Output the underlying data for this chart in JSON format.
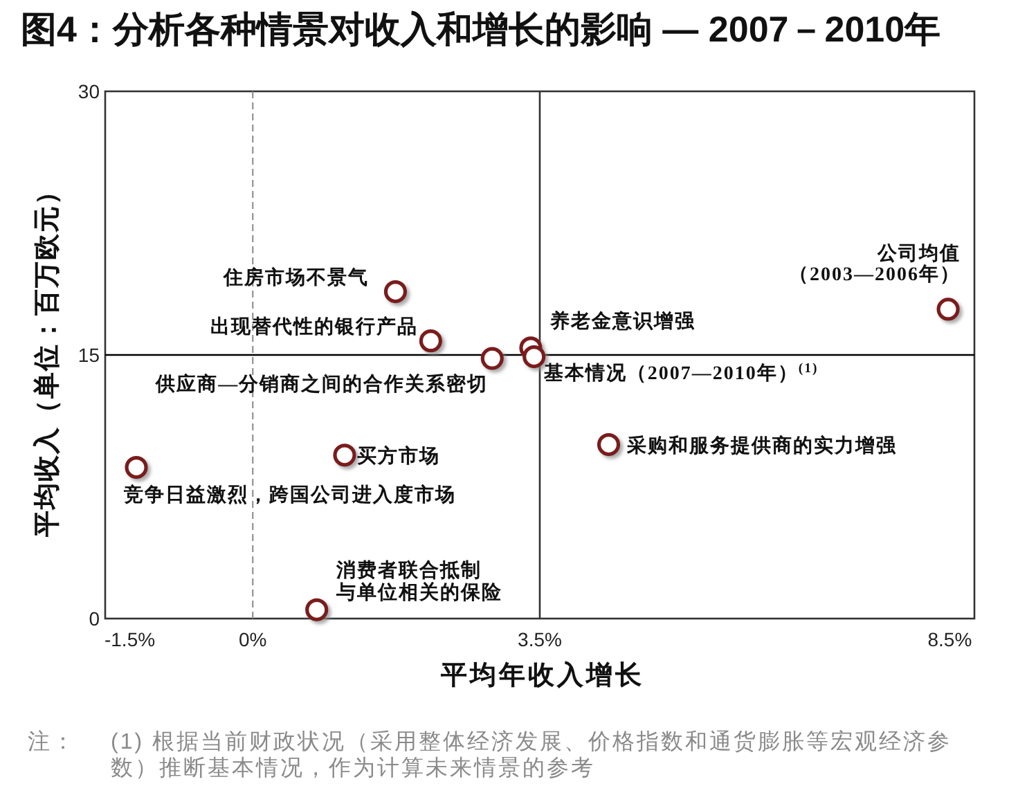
{
  "chart_data": {
    "type": "scatter",
    "title": "图4：分析各种情景对收入和增长的影响 — 2007－2010年",
    "xlabel": "平均年收入增长",
    "ylabel": "平均收入（单位：百万欧元）",
    "x": [
      1.74,
      2.17,
      2.92,
      3.39,
      3.43,
      8.48,
      4.34,
      1.12,
      -1.42,
      0.78
    ],
    "series": [
      {
        "color": "#7a1a1a",
        "values": [
          18.6,
          15.8,
          14.8,
          15.4,
          14.9,
          17.6,
          9.9,
          9.3,
          8.6,
          0.5
        ]
      }
    ],
    "marker": "circle",
    "xlim": [
      -1.8,
      8.8
    ],
    "xticks": [
      {
        "value": -1.5,
        "label": "-1.5%"
      },
      {
        "value": 0,
        "label": "0%"
      },
      {
        "value": 3.5,
        "label": "3.5%"
      },
      {
        "value": 8.5,
        "label": "8.5%"
      }
    ],
    "ylim": [
      0,
      30
    ],
    "yticks": [
      0,
      15,
      30
    ],
    "ref_lines": [
      {
        "axis": "y",
        "value": 15,
        "color": "#000000"
      },
      {
        "axis": "x",
        "value": 3.5,
        "color": "#333333"
      },
      {
        "axis": "x",
        "value": 0,
        "color": "#888888",
        "line_style": "dashed"
      }
    ],
    "annotations": [
      {
        "text": "住房市场不景气",
        "x": 1.74,
        "y": 18.6
      },
      {
        "text": "出现替代性的银行产品",
        "x": 2.17,
        "y": 15.8
      },
      {
        "text": "供应商—分销商之间的合作关系密切",
        "x": 2.92,
        "y": 14.8
      },
      {
        "text": "养老金意识增强",
        "x": 3.39,
        "y": 15.4
      },
      {
        "text": "基本情况（2007—2010年）$^{(1)}$",
        "x": 3.43,
        "y": 14.9
      },
      {
        "text": "公司均值",
        "x": 8.48,
        "y": 17.6
      },
      {
        "text": "（2003—2006年）",
        "x": 8.48,
        "y": 17.6
      },
      {
        "text": "采购和服务提供商的实力增强",
        "x": 4.34,
        "y": 9.9
      },
      {
        "text": "买方市场",
        "x": 1.12,
        "y": 9.3
      },
      {
        "text": "竞争日益激烈，跨国公司进入度市场",
        "x": -1.42,
        "y": 8.6
      },
      {
        "text": "消费者联合抵制",
        "x": 0.78,
        "y": 0.5
      },
      {
        "text": "与单位相关的保险",
        "x": 0.78,
        "y": 0.5
      },
      "注：",
      "(1) 根据当前财政状况（采用整体经济发展、价格指数和通货膨胀等宏观经济参数）推断基本情况，作为计算未来情景的参考"
    ]
  }
}
